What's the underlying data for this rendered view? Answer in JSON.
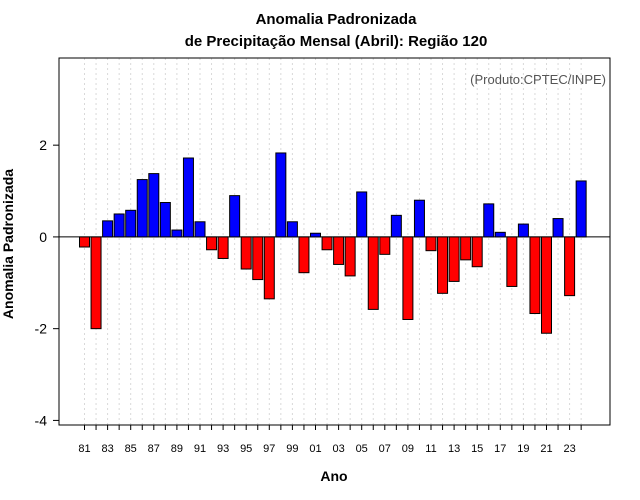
{
  "chart_data": {
    "type": "bar",
    "title_line1": "Anomalia Padronizada",
    "title_line2": "de Precipitação Mensal (Abril): Região 120",
    "xlabel": "Ano",
    "ylabel": "Anomalia Padronizada",
    "credit": "(Produto:CPTEC/INPE)",
    "ylim": [
      -4.1,
      3.9
    ],
    "yticks": [
      -4,
      -2,
      0,
      2
    ],
    "ytick_labels": [
      "-4",
      "-2",
      "0",
      "2"
    ],
    "grid": "vertical-dotted",
    "years": [
      1981,
      1982,
      1983,
      1984,
      1985,
      1986,
      1987,
      1988,
      1989,
      1990,
      1991,
      1992,
      1993,
      1994,
      1995,
      1996,
      1997,
      1998,
      1999,
      2000,
      2001,
      2002,
      2003,
      2004,
      2005,
      2006,
      2007,
      2008,
      2009,
      2010,
      2011,
      2012,
      2013,
      2014,
      2015,
      2016,
      2017,
      2018,
      2019,
      2020,
      2021,
      2022,
      2023,
      2024
    ],
    "values": [
      -0.22,
      -2.0,
      0.35,
      0.5,
      0.58,
      1.25,
      1.38,
      0.75,
      0.15,
      1.72,
      0.33,
      -0.28,
      -0.47,
      0.9,
      -0.7,
      -0.93,
      -1.35,
      1.83,
      0.33,
      -0.78,
      0.08,
      -0.28,
      -0.6,
      -0.85,
      0.98,
      -1.58,
      -0.38,
      0.47,
      -1.8,
      0.8,
      -0.3,
      -1.23,
      -0.97,
      -0.5,
      -0.65,
      0.72,
      0.1,
      -1.08,
      0.28,
      -1.67,
      -2.1,
      0.4,
      -1.28,
      1.22
    ],
    "xtick_labels": [
      "81",
      "83",
      "85",
      "87",
      "89",
      "91",
      "93",
      "95",
      "97",
      "99",
      "01",
      "03",
      "05",
      "07",
      "09",
      "11",
      "13",
      "15",
      "17",
      "19",
      "21",
      "23"
    ],
    "colors": {
      "positive": "#0000ff",
      "negative": "#ff0000",
      "grid": "#d9d9d9",
      "axis": "#000000"
    }
  }
}
